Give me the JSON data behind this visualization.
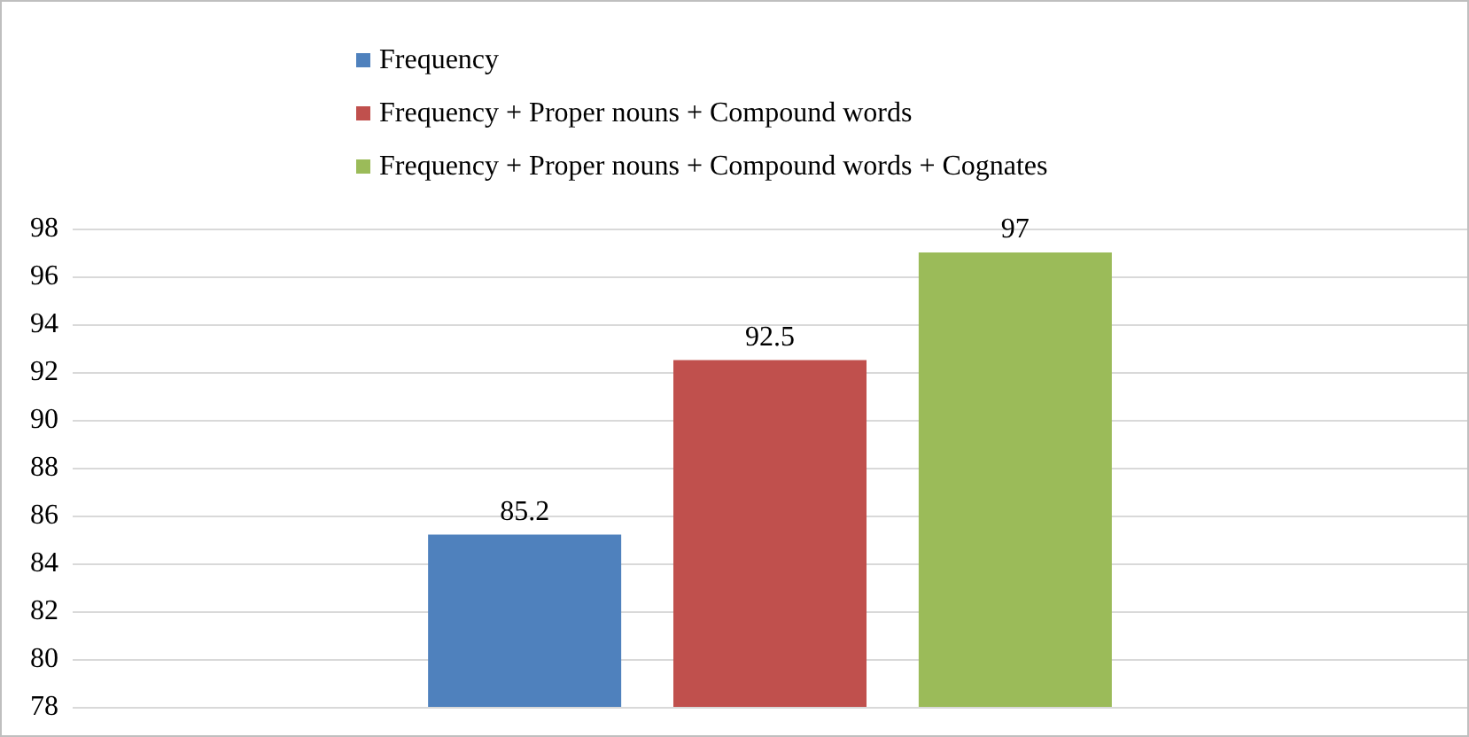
{
  "chart_data": {
    "type": "bar",
    "categories": [
      null
    ],
    "series": [
      {
        "name": "Frequency",
        "color": "#4f81bd",
        "values": [
          85.2
        ]
      },
      {
        "name": "Frequency + Proper nouns + Compound words",
        "color": "#c0504d",
        "values": [
          92.5
        ]
      },
      {
        "name": "Frequency + Proper nouns + Compound words + Cognates",
        "color": "#9bbb59",
        "values": [
          97
        ]
      }
    ],
    "ylim": [
      78,
      98
    ],
    "yticks": [
      78,
      80,
      82,
      84,
      86,
      88,
      90,
      92,
      94,
      96,
      98
    ],
    "grid": "y",
    "legend": "top",
    "data_labels": true,
    "tick_labels": "y"
  }
}
